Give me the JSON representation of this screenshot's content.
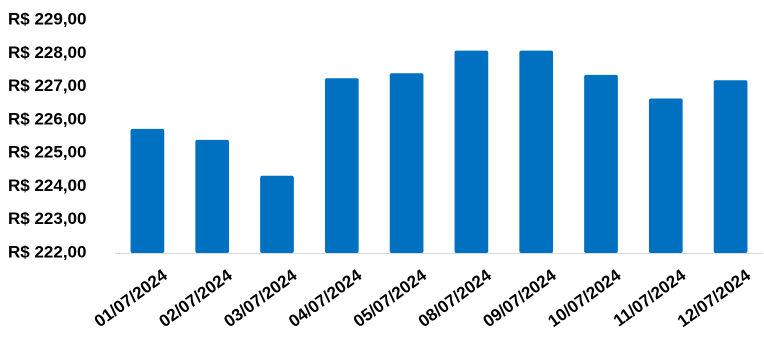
{
  "chart_data": {
    "type": "bar",
    "title": "",
    "xlabel": "",
    "ylabel": "",
    "categories": [
      "01/07/2024",
      "02/07/2024",
      "03/07/2024",
      "04/07/2024",
      "05/07/2024",
      "08/07/2024",
      "09/07/2024",
      "10/07/2024",
      "11/07/2024",
      "12/07/2024"
    ],
    "series": [
      {
        "values": [
          225.73,
          225.4,
          224.32,
          227.25,
          227.4,
          228.08,
          228.08,
          227.35,
          226.64,
          227.19
        ],
        "color": "#0070C0"
      }
    ],
    "ylim": [
      222,
      229
    ],
    "yticks": [
      222,
      223,
      224,
      225,
      226,
      227,
      228,
      229
    ],
    "ytick_labels": [
      "R$ 222,00",
      "R$ 223,00",
      "R$ 224,00",
      "R$ 225,00",
      "R$ 226,00",
      "R$ 227,00",
      "R$ 228,00",
      "R$ 229,00"
    ],
    "grid": false,
    "legend": "none",
    "colors": {
      "bar": "#0070C0",
      "axis": "#D9D9D9",
      "text": "#000000"
    }
  }
}
